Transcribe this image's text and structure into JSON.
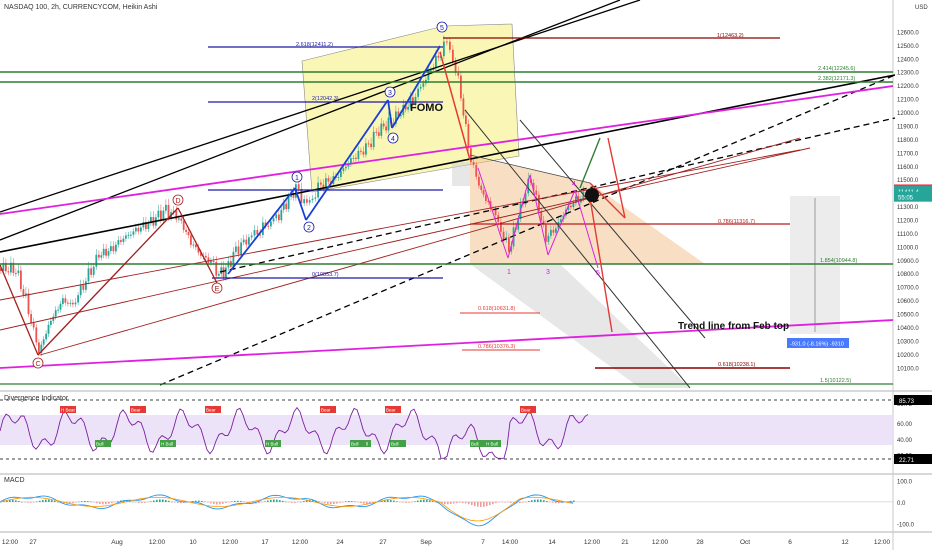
{
  "header": {
    "title": "NASDAQ 100, 2h, CURRENCYCOM, Heikin Ashi"
  },
  "chart_data": {
    "type": "candlestick",
    "price_axis": {
      "currency": "USD",
      "ylim": [
        10050,
        12700
      ],
      "ticks": [
        "12600.0",
        "12500.0",
        "12400.0",
        "12300.0",
        "12200.0",
        "12100.0",
        "12000.0",
        "11900.0",
        "11800.0",
        "11700.0",
        "11600.0",
        "11500.0",
        "11400.0",
        "11300.0",
        "11200.0",
        "11100.0",
        "11000.0",
        "10900.0",
        "10800.0",
        "10700.0",
        "10600.0",
        "10500.0",
        "10400.0",
        "10300.0",
        "10200.0",
        "10100.0"
      ],
      "badges": [
        {
          "text": "11423.9",
          "value": 11423.9,
          "color": "#f23645"
        },
        {
          "text": "11411.4",
          "value": 11411.4,
          "color": "#26a69a"
        },
        {
          "text": "55:05",
          "value": 11370,
          "color": "#26a69a"
        }
      ]
    },
    "time_axis": {
      "ticks": [
        "12:00",
        "27",
        "Aug",
        "12:00",
        "10",
        "12:00",
        "17",
        "12:00",
        "24",
        "27",
        "Sep",
        "7",
        "14:00",
        "14",
        "12:00",
        "21",
        "12:00",
        "28",
        "Oct",
        "6",
        "12",
        "12:00"
      ]
    },
    "fib_levels": [
      {
        "label": "1(12463.2)",
        "value": 12463.2,
        "color": "#8b0000"
      },
      {
        "label": "2.618(12411.2)",
        "value": 12411.2,
        "color": "#1a1aa6"
      },
      {
        "label": "2.414(12245.6)",
        "value": 12245.6,
        "color": "#2e7d32"
      },
      {
        "label": "2.382(12171.3)",
        "value": 12171.3,
        "color": "#2e7d32"
      },
      {
        "label": "2(12042.3)",
        "value": 12042.3,
        "color": "#1a1aa6"
      },
      {
        "label": "0.786(11316.7)",
        "value": 11316.7,
        "color": "#b71c1c"
      },
      {
        "label": "1.854(10944.8)",
        "value": 10944.8,
        "color": "#2e7d32"
      },
      {
        "label": "0(10853.7)",
        "value": 10853.7,
        "color": "#1a1aa6"
      },
      {
        "label": "0.618(10631.8)",
        "value": 10631.8,
        "color": "#e53935"
      },
      {
        "label": "0.786(10376.3)",
        "value": 10376.3,
        "color": "#e53935"
      },
      {
        "label": "0.618(10238.1)",
        "value": 10238.1,
        "color": "#8b0000"
      },
      {
        "label": "1.5(10122.5)",
        "value": 10122.5,
        "color": "#2e7d32"
      }
    ],
    "annotations": {
      "fomo": "FOMO",
      "trend_line": "Trend line from Feb top",
      "measure": "-931.0 (-8.16%) -9310",
      "waves": [
        "1",
        "2",
        "3",
        "4",
        "5",
        "D",
        "E",
        "C",
        "1",
        "3",
        "4",
        "5"
      ]
    },
    "indicator": {
      "name": "Divergence Indicator",
      "ylim": [
        0,
        100
      ],
      "ticks": [
        "85.73",
        "60.00",
        "40.00",
        "20.00"
      ],
      "levels": [
        85.73,
        22.71
      ],
      "badges": [
        {
          "text": "85.73",
          "value": 85.73,
          "color": "#000000"
        },
        {
          "text": "22.71",
          "value": 22.71,
          "color": "#000000"
        }
      ],
      "signal_labels": [
        "H Bear",
        "Bull",
        "H Bull",
        "Bear",
        "Bear",
        "H Bull",
        "Bear",
        "H Bull",
        "Bull",
        "Bear",
        "H Bull",
        "Bull",
        "Bear",
        "Bull"
      ]
    },
    "macd": {
      "name": "MACD",
      "ylim": [
        -130,
        120
      ],
      "ticks": [
        "100.0",
        "0.0",
        "-100.0"
      ]
    }
  }
}
